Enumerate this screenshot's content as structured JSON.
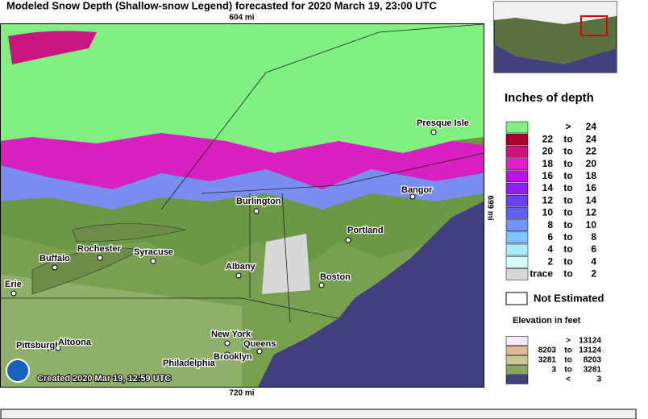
{
  "header": {
    "title": "Modeled Snow Depth (Shallow-snow Legend) forecasted for 2020 March 19, 23:00 UTC"
  },
  "map": {
    "top_scale": "604 mi",
    "right_scale": "699 mi",
    "bottom_scale": "720 mi",
    "created": "Created 2020 Mar 19, 12:59 UTC",
    "cities": [
      {
        "label": "Presque Isle"
      },
      {
        "label": "Burlington"
      },
      {
        "label": "Bangor"
      },
      {
        "label": "Rochester"
      },
      {
        "label": "Syracuse"
      },
      {
        "label": "Buffalo"
      },
      {
        "label": "Portland"
      },
      {
        "label": "Albany"
      },
      {
        "label": "Boston"
      },
      {
        "label": "Erie"
      },
      {
        "label": "New York"
      },
      {
        "label": "Queens"
      },
      {
        "label": "Pittsburgh"
      },
      {
        "label": "Altoona"
      },
      {
        "label": "Brooklyn"
      },
      {
        "label": "Philadelphia"
      }
    ]
  },
  "legend": {
    "title": "Inches of depth",
    "rows": [
      {
        "color": "#80f080",
        "sep": ">",
        "high": "24"
      },
      {
        "color": "#a8002c",
        "low": "22",
        "sep": "to",
        "high": "24"
      },
      {
        "color": "#d0107a",
        "low": "20",
        "sep": "to",
        "high": "22"
      },
      {
        "color": "#e020c8",
        "low": "18",
        "sep": "to",
        "high": "20"
      },
      {
        "color": "#c010e8",
        "low": "16",
        "sep": "to",
        "high": "18"
      },
      {
        "color": "#8c20f0",
        "low": "14",
        "sep": "to",
        "high": "16"
      },
      {
        "color": "#6c40f0",
        "low": "12",
        "sep": "to",
        "high": "14"
      },
      {
        "color": "#6060f8",
        "low": "10",
        "sep": "to",
        "high": "12"
      },
      {
        "color": "#7094f8",
        "low": "8",
        "sep": "to",
        "high": "10"
      },
      {
        "color": "#80c4ff",
        "low": "6",
        "sep": "to",
        "high": "8"
      },
      {
        "color": "#a8ecff",
        "low": "4",
        "sep": "to",
        "high": "6"
      },
      {
        "color": "#d4ffff",
        "low": "2",
        "sep": "to",
        "high": "4"
      },
      {
        "color": "#d8d8d8",
        "low": "trace",
        "sep": "to",
        "high": "2"
      }
    ],
    "not_estimated": "Not Estimated",
    "elevation_title": "Elevation in feet",
    "elevation_rows": [
      {
        "color": "#f8e8f8",
        "sep": ">",
        "high": "13124"
      },
      {
        "color": "#e0b890",
        "low": "8203",
        "sep": "to",
        "high": "13124"
      },
      {
        "color": "#c8c890",
        "low": "3281",
        "sep": "to",
        "high": "8203"
      },
      {
        "color": "#88a860",
        "low": "3",
        "sep": "to",
        "high": "3281"
      },
      {
        "color": "#404080",
        "sep": "<",
        "high": "3"
      }
    ]
  }
}
